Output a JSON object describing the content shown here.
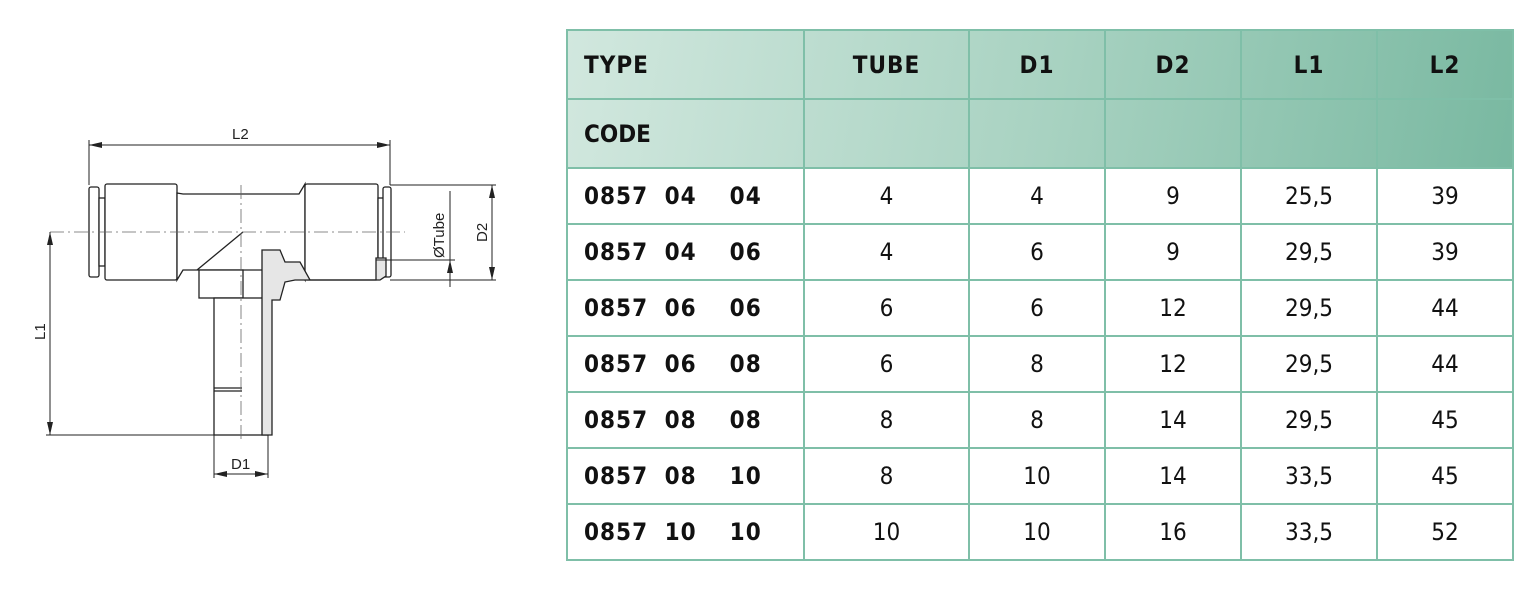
{
  "drawing": {
    "labels": {
      "l2": "L2",
      "l1": "L1",
      "d1": "D1",
      "d2": "D2",
      "tube": "ØTube"
    }
  },
  "table": {
    "headers": [
      "TYPE",
      "TUBE",
      "D1",
      "D2",
      "L1",
      "L2"
    ],
    "code_label": "CODE",
    "rows": [
      {
        "code": "0857 04  04",
        "tube": "4",
        "d1": "4",
        "d2": "9",
        "l1": "25,5",
        "l2": "39"
      },
      {
        "code": "0857 04  06",
        "tube": "4",
        "d1": "6",
        "d2": "9",
        "l1": "29,5",
        "l2": "39"
      },
      {
        "code": "0857 06  06",
        "tube": "6",
        "d1": "6",
        "d2": "12",
        "l1": "29,5",
        "l2": "44"
      },
      {
        "code": "0857 06  08",
        "tube": "6",
        "d1": "8",
        "d2": "12",
        "l1": "29,5",
        "l2": "44"
      },
      {
        "code": "0857 08  08",
        "tube": "8",
        "d1": "8",
        "d2": "14",
        "l1": "29,5",
        "l2": "45"
      },
      {
        "code": "0857 08  10",
        "tube": "8",
        "d1": "10",
        "d2": "14",
        "l1": "33,5",
        "l2": "45"
      },
      {
        "code": "0857 10  10",
        "tube": "10",
        "d1": "10",
        "d2": "16",
        "l1": "33,5",
        "l2": "52"
      }
    ]
  },
  "colors": {
    "accent": "#6fb39a",
    "code_text": "#3f6b57",
    "border": "#7fbfa8"
  }
}
